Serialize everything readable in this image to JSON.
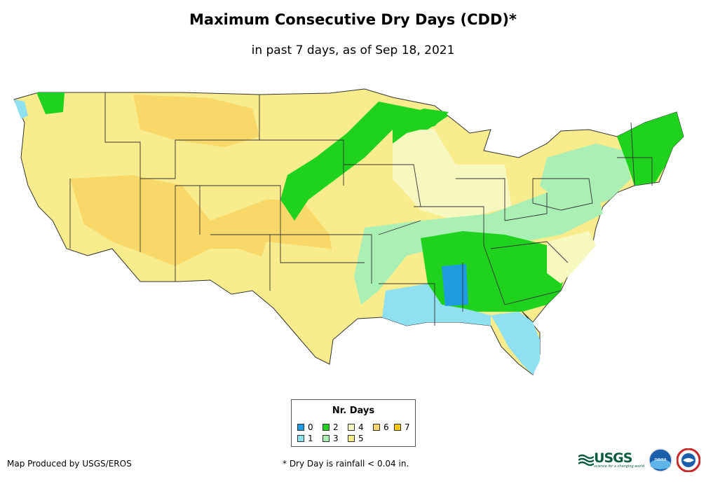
{
  "header": {
    "title": "Maximum Consecutive Dry Days (CDD)*",
    "subtitle": "in past 7 days, as of Sep 18, 2021"
  },
  "legend": {
    "title": "Nr. Days",
    "items": [
      {
        "label": "0",
        "color": "#1f9be0"
      },
      {
        "label": "1",
        "color": "#8fe0f0"
      },
      {
        "label": "2",
        "color": "#1ed21e"
      },
      {
        "label": "3",
        "color": "#aaf0b4"
      },
      {
        "label": "4",
        "color": "#f7f7c0"
      },
      {
        "label": "5",
        "color": "#f8ec8c"
      },
      {
        "label": "6",
        "color": "#f8d868"
      },
      {
        "label": "7",
        "color": "#f8c800"
      }
    ]
  },
  "footer": {
    "credit": "Map Produced by USGS/EROS",
    "note": "* Dry Day is rainfall < 0.04 in.",
    "logo_usgs": "USGS",
    "logo_usgs_tagline": "science for a changing world",
    "logo_noaa": "noaa"
  },
  "map": {
    "regions": [
      {
        "name": "west",
        "legend_value": "5"
      },
      {
        "name": "rockies",
        "legend_value": "6"
      },
      {
        "name": "northern-plains-band",
        "legend_value": "2"
      },
      {
        "name": "upper-midwest",
        "legend_value": "4"
      },
      {
        "name": "mississippi-valley",
        "legend_value": "3"
      },
      {
        "name": "southeast",
        "legend_value": "2"
      },
      {
        "name": "gulf-coast",
        "legend_value": "1"
      },
      {
        "name": "florida",
        "legend_value": "1"
      },
      {
        "name": "northeast",
        "legend_value": "3"
      },
      {
        "name": "new-england",
        "legend_value": "2"
      },
      {
        "name": "texas-plains",
        "legend_value": "5"
      }
    ]
  }
}
